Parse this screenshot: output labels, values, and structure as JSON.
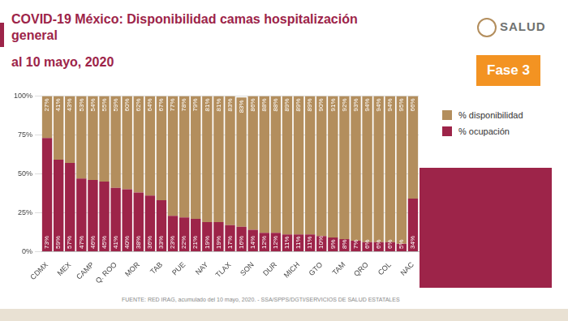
{
  "header": {
    "title": "COVID-19 México: Disponibilidad camas hospitalización general",
    "subtitle": "al 10 mayo, 2020",
    "logo": "SALUD",
    "badge": "Fase 3"
  },
  "chart_data": {
    "type": "bar",
    "stacked": true,
    "grid": true,
    "legend": "right",
    "data_labels": true,
    "categories": [
      "CDMX",
      null,
      "MEX",
      null,
      "CAMP",
      null,
      "Q. ROO",
      null,
      "MOR",
      null,
      "TAB",
      null,
      "PUE",
      null,
      "NAY",
      null,
      "TLAX",
      null,
      "SON",
      null,
      "DUR",
      null,
      "MICH",
      null,
      "GTO",
      null,
      "TAM",
      null,
      "QRO",
      null,
      "COL",
      null,
      "NAC"
    ],
    "series": [
      {
        "name": "% ocupación",
        "color": "#9d2449",
        "values": [
          73,
          59,
          57,
          47,
          46,
          45,
          41,
          40,
          38,
          36,
          33,
          23,
          22,
          21,
          19,
          19,
          17,
          16,
          14,
          12,
          12,
          11,
          11,
          11,
          10,
          9,
          8,
          7,
          6,
          6,
          6,
          5,
          34
        ],
        "value_labels": [
          "73%",
          "59%",
          "57%",
          "47%",
          "46%",
          "45%",
          "41%",
          "40%",
          "38%",
          "36%",
          "33%",
          "23%",
          "22%",
          "21%",
          "19%",
          "19%",
          "17%",
          "16%",
          "14%",
          "12%",
          "12%",
          "11%",
          "11%",
          "11%",
          "10%",
          "9%",
          "8%",
          "7%",
          "6%",
          "6%",
          "6%",
          "5%",
          "34%"
        ]
      },
      {
        "name": "% disponibilidad",
        "color": "#b38e5d",
        "values": [
          27,
          41,
          43,
          53,
          54,
          55,
          59,
          60,
          62,
          64,
          67,
          77,
          78,
          79,
          81,
          81,
          83,
          83,
          86,
          88,
          88,
          89,
          89,
          89,
          90,
          91,
          92,
          93,
          94,
          94,
          94,
          95,
          66
        ],
        "value_labels": [
          "27%",
          "41%",
          "43%",
          "53%",
          "54%",
          "55%",
          "59%",
          "60%",
          "62%",
          "64%",
          "67%",
          "77%",
          "78%",
          "79%",
          "81%",
          "81%",
          "83%",
          "83%",
          "86%",
          "88%",
          "88%",
          "89%",
          "89%",
          "89%",
          "90%",
          "91%",
          "92%",
          "93%",
          "94%",
          "94%",
          "94%",
          "95%",
          "66%"
        ]
      }
    ],
    "ylim": [
      0,
      100
    ],
    "yticks": [
      {
        "value": 0,
        "label": "0%"
      },
      {
        "value": 25,
        "label": "25%"
      },
      {
        "value": 50,
        "label": "50%"
      },
      {
        "value": 75,
        "label": "75%"
      },
      {
        "value": 100,
        "label": "100%"
      }
    ]
  },
  "footer": {
    "source": "FUENTE: RED IRAG, acumulado del 10 mayo, 2020. - SSA/SPPS/DGTI/SERVICIOS DE SALUD ESTATALES"
  }
}
